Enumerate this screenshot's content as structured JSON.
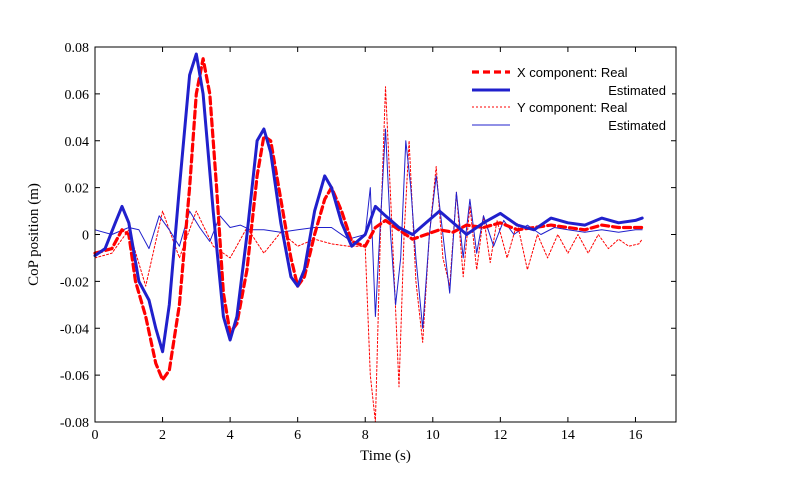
{
  "chart_data": {
    "type": "line",
    "title": "",
    "xlabel": "Time (s)",
    "ylabel": "CoP position (m)",
    "xlim": [
      0,
      17.2
    ],
    "ylim": [
      -0.08,
      0.08
    ],
    "xticks": [
      0,
      2,
      4,
      6,
      8,
      10,
      12,
      14,
      16
    ],
    "xtick_labels": [
      "0",
      "2",
      "4",
      "6",
      "8",
      "10",
      "12",
      "14",
      "16"
    ],
    "yticks": [
      -0.08,
      -0.06,
      -0.04,
      -0.02,
      0,
      0.02,
      0.04,
      0.06,
      0.08
    ],
    "ytick_labels": [
      "-0.08",
      "-0.06",
      "-0.04",
      "-0.02",
      "0",
      "0.02",
      "0.04",
      "0.06",
      "0.08"
    ],
    "grid": false,
    "legend_position": "top-right",
    "legend": [
      "X component: Real",
      "Estimated",
      "Y component: Real",
      "Estimated"
    ],
    "series": [
      {
        "name": "X component: Real",
        "color": "#ff0000",
        "style": "thick-dashed",
        "x": [
          0,
          0.5,
          0.8,
          1.0,
          1.2,
          1.5,
          1.8,
          2.0,
          2.2,
          2.5,
          2.8,
          3.0,
          3.2,
          3.4,
          3.6,
          3.8,
          4.0,
          4.2,
          4.5,
          4.8,
          5.0,
          5.2,
          5.5,
          5.8,
          6.0,
          6.2,
          6.5,
          6.8,
          7.0,
          7.3,
          7.6,
          8.0,
          8.3,
          8.6,
          9.0,
          9.4,
          9.8,
          10.2,
          10.6,
          11.0,
          11.5,
          12.0,
          12.5,
          13.0,
          13.5,
          14.0,
          14.5,
          15.0,
          15.5,
          16.0,
          16.2
        ],
        "values": [
          -0.008,
          -0.006,
          0.002,
          0.0,
          -0.02,
          -0.035,
          -0.055,
          -0.062,
          -0.058,
          -0.03,
          0.02,
          0.06,
          0.075,
          0.06,
          0.02,
          -0.025,
          -0.042,
          -0.038,
          -0.015,
          0.025,
          0.042,
          0.04,
          0.015,
          -0.01,
          -0.022,
          -0.018,
          0.0,
          0.015,
          0.02,
          0.01,
          -0.003,
          -0.005,
          0.003,
          0.006,
          0.002,
          -0.002,
          0.0,
          0.002,
          0.001,
          0.004,
          0.003,
          0.005,
          0.002,
          0.003,
          0.004,
          0.003,
          0.002,
          0.004,
          0.003,
          0.003,
          0.003
        ]
      },
      {
        "name": "Estimated (X component)",
        "color": "#2020cc",
        "style": "thick-solid",
        "x": [
          0,
          0.3,
          0.6,
          0.8,
          1.0,
          1.3,
          1.6,
          1.8,
          2.0,
          2.2,
          2.5,
          2.8,
          3.0,
          3.2,
          3.5,
          3.8,
          4.0,
          4.2,
          4.5,
          4.8,
          5.0,
          5.2,
          5.5,
          5.8,
          6.0,
          6.2,
          6.5,
          6.8,
          7.0,
          7.3,
          7.6,
          8.0,
          8.3,
          8.6,
          9.0,
          9.4,
          9.8,
          10.2,
          10.6,
          11.0,
          11.5,
          12.0,
          12.5,
          13.0,
          13.5,
          14.0,
          14.5,
          15.0,
          15.5,
          16.0,
          16.2
        ],
        "values": [
          -0.009,
          -0.006,
          0.005,
          0.012,
          0.005,
          -0.02,
          -0.028,
          -0.04,
          -0.05,
          -0.03,
          0.02,
          0.068,
          0.077,
          0.06,
          0.01,
          -0.035,
          -0.045,
          -0.035,
          0.0,
          0.04,
          0.045,
          0.035,
          0.005,
          -0.018,
          -0.022,
          -0.015,
          0.01,
          0.025,
          0.02,
          0.005,
          -0.005,
          0.0,
          0.012,
          0.008,
          0.003,
          0.0,
          0.005,
          0.01,
          0.005,
          0.0,
          0.005,
          0.009,
          0.004,
          0.002,
          0.007,
          0.005,
          0.004,
          0.007,
          0.005,
          0.006,
          0.007
        ]
      },
      {
        "name": "Y component: Real",
        "color": "#ff0000",
        "style": "thin-dotted",
        "x": [
          0,
          0.5,
          1.0,
          1.5,
          2.0,
          2.5,
          3.0,
          3.5,
          4.0,
          4.5,
          5.0,
          5.5,
          6.0,
          6.5,
          7.0,
          7.5,
          8.0,
          8.15,
          8.3,
          8.45,
          8.6,
          8.8,
          9.0,
          9.15,
          9.3,
          9.5,
          9.7,
          9.9,
          10.1,
          10.3,
          10.5,
          10.7,
          10.9,
          11.1,
          11.3,
          11.5,
          11.7,
          11.9,
          12.2,
          12.5,
          12.8,
          13.1,
          13.4,
          13.7,
          14.0,
          14.3,
          14.6,
          14.9,
          15.2,
          15.5,
          15.8,
          16.1,
          16.2
        ],
        "values": [
          -0.01,
          -0.008,
          0.002,
          -0.022,
          0.01,
          -0.01,
          0.01,
          -0.005,
          -0.01,
          0.003,
          -0.008,
          0.001,
          -0.005,
          -0.002,
          -0.004,
          -0.005,
          -0.005,
          -0.06,
          -0.08,
          0.0,
          0.063,
          0.0,
          -0.065,
          0.0,
          0.04,
          -0.02,
          -0.046,
          0.0,
          0.029,
          -0.01,
          -0.022,
          0.018,
          -0.018,
          0.012,
          -0.015,
          0.008,
          -0.012,
          0.006,
          -0.01,
          0.005,
          -0.015,
          0.0,
          -0.01,
          0.0,
          -0.008,
          0.0,
          -0.008,
          0.0,
          -0.006,
          -0.002,
          -0.005,
          -0.004,
          -0.002
        ]
      },
      {
        "name": "Estimated (Y component)",
        "color": "#2020cc",
        "style": "thin-solid",
        "x": [
          0,
          0.5,
          1.0,
          1.3,
          1.6,
          1.9,
          2.2,
          2.5,
          2.8,
          3.1,
          3.4,
          3.7,
          4.0,
          4.3,
          4.6,
          5.0,
          5.5,
          6.0,
          6.5,
          7.0,
          7.5,
          8.0,
          8.15,
          8.3,
          8.45,
          8.6,
          8.75,
          8.9,
          9.05,
          9.2,
          9.35,
          9.5,
          9.7,
          9.9,
          10.1,
          10.3,
          10.5,
          10.7,
          10.9,
          11.1,
          11.3,
          11.5,
          11.8,
          12.1,
          12.4,
          12.8,
          13.2,
          13.6,
          14.0,
          14.5,
          15.0,
          15.5,
          16.0,
          16.2
        ],
        "values": [
          0.002,
          0.0,
          0.003,
          0.002,
          -0.006,
          0.008,
          0.002,
          -0.005,
          0.01,
          0.003,
          -0.003,
          0.008,
          0.003,
          0.004,
          0.002,
          0.002,
          0.001,
          0.002,
          0.003,
          0.003,
          -0.002,
          0.0,
          0.02,
          -0.035,
          0.005,
          0.045,
          0.0,
          -0.03,
          -0.01,
          0.04,
          0.02,
          -0.01,
          -0.04,
          0.0,
          0.025,
          0.0,
          -0.025,
          0.018,
          -0.01,
          0.015,
          -0.008,
          0.008,
          -0.005,
          0.006,
          0.0,
          0.004,
          0.0,
          0.003,
          0.002,
          0.001,
          0.002,
          0.001,
          0.002,
          0.002
        ]
      }
    ]
  }
}
